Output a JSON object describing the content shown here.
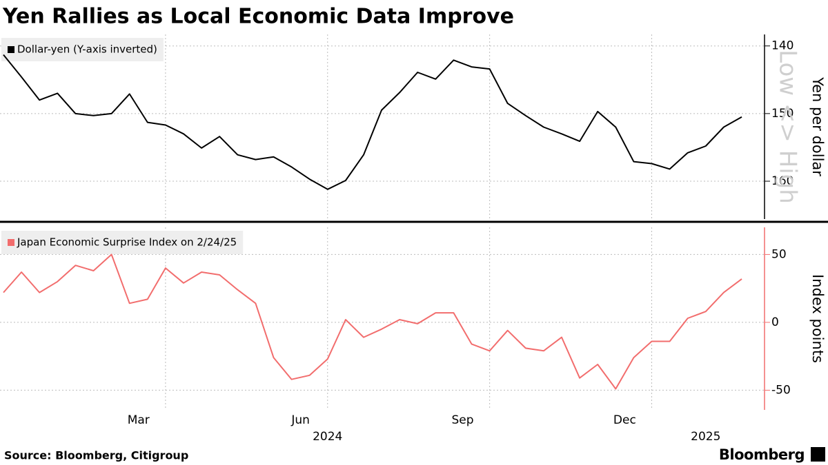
{
  "title": "Yen Rallies as Local Economic Data Improve",
  "source": "Source: Bloomberg, Citigroup",
  "brand": "Bloomberg",
  "chart_data": [
    {
      "type": "line",
      "y_label": "Yen per dollar",
      "annotation": "Low <> High",
      "inverted": true,
      "grid": true,
      "x": [
        "2024-01",
        "2024-01",
        "2024-01",
        "2024-02",
        "2024-02",
        "2024-02",
        "2024-03",
        "2024-03",
        "2024-03",
        "2024-04",
        "2024-04",
        "2024-04",
        "2024-05",
        "2024-05",
        "2024-05",
        "2024-06",
        "2024-06",
        "2024-06",
        "2024-07",
        "2024-07",
        "2024-07",
        "2024-08",
        "2024-08",
        "2024-08",
        "2024-09",
        "2024-09",
        "2024-09",
        "2024-10",
        "2024-10",
        "2024-10",
        "2024-11",
        "2024-11",
        "2024-11",
        "2024-12",
        "2024-12",
        "2024-12",
        "2025-01",
        "2025-01",
        "2025-01",
        "2025-02",
        "2025-02",
        "2025-02"
      ],
      "series": [
        {
          "name": "Dollar-yen (Y-axis inverted)",
          "color": "#000000",
          "values": [
            141.3,
            144.6,
            148,
            147,
            150,
            150.3,
            150,
            147.1,
            151.3,
            151.7,
            153,
            155.1,
            153.4,
            156.1,
            156.8,
            156.4,
            157.9,
            159.7,
            161.2,
            159.9,
            156.1,
            149.5,
            146.9,
            143.9,
            144.9,
            142.1,
            143.1,
            143.4,
            148.5,
            150.3,
            152,
            153,
            154.1,
            149.7,
            152,
            157.1,
            157.4,
            158.2,
            155.8,
            154.8,
            152,
            150.5
          ]
        }
      ],
      "ylim": [
        138.3,
        165.6
      ],
      "yticks": [
        140,
        150,
        160
      ]
    },
    {
      "type": "line",
      "y_label": "Index points",
      "grid": true,
      "x": [
        "2024-01",
        "2024-01",
        "2024-01",
        "2024-02",
        "2024-02",
        "2024-02",
        "2024-03",
        "2024-03",
        "2024-03",
        "2024-04",
        "2024-04",
        "2024-04",
        "2024-05",
        "2024-05",
        "2024-05",
        "2024-06",
        "2024-06",
        "2024-06",
        "2024-07",
        "2024-07",
        "2024-07",
        "2024-08",
        "2024-08",
        "2024-08",
        "2024-09",
        "2024-09",
        "2024-09",
        "2024-10",
        "2024-10",
        "2024-10",
        "2024-11",
        "2024-11",
        "2024-11",
        "2024-12",
        "2024-12",
        "2024-12",
        "2025-01",
        "2025-01",
        "2025-01",
        "2025-02",
        "2025-02",
        "2025-02"
      ],
      "series": [
        {
          "name": "Japan Economic Surprise Index on 2/24/25",
          "color": "#f26d6d",
          "values": [
            22,
            37,
            22,
            30,
            42,
            38,
            50,
            14,
            17,
            40,
            29,
            37,
            35,
            24,
            14,
            -26,
            -42,
            -39,
            -27,
            2,
            -11,
            -5,
            2,
            -1,
            7,
            7,
            -16,
            -21,
            -6,
            -19,
            -21,
            -11,
            -41,
            -31,
            -49,
            -26,
            -14,
            -14,
            3,
            8,
            22,
            32
          ]
        }
      ],
      "ylim": [
        -64.5,
        70
      ],
      "yticks": [
        50,
        0,
        -50
      ],
      "xticks": [
        {
          "value": "2024-03",
          "label": "Mar"
        },
        {
          "value": "2024-06",
          "label": "Jun"
        },
        {
          "value": "2024-09",
          "label": "Sep"
        },
        {
          "value": "2024-12",
          "label": "Dec"
        }
      ],
      "year_labels": [
        {
          "value": "2024-07",
          "label": "2024"
        },
        {
          "value": "2025-02",
          "label": "2025"
        }
      ]
    }
  ]
}
